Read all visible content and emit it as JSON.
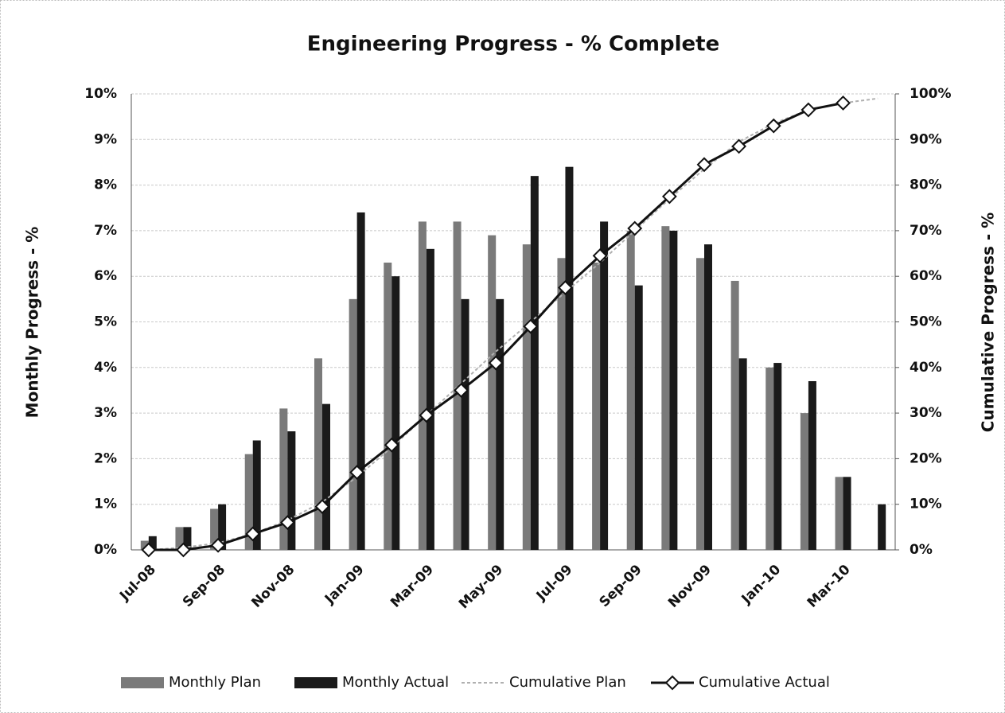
{
  "chart_data": {
    "type": "bar",
    "title": "Engineering Progress - % Complete",
    "y_label": "Monthly Progress - %",
    "y2_label": "Cumulative Progress - %",
    "categories": [
      "Jul-08",
      null,
      "Sep-08",
      null,
      "Nov-08",
      null,
      "Jan-09",
      null,
      "Mar-09",
      null,
      "May-09",
      null,
      "Jul-09",
      null,
      "Sep-09",
      null,
      "Nov-09",
      null,
      "Jan-10",
      null,
      "Mar-10",
      null
    ],
    "series": [
      {
        "name": "Monthly Plan",
        "type": "bar",
        "color": "#7a7a7a",
        "values": [
          0.2,
          0.5,
          0.9,
          2.1,
          3.1,
          4.2,
          5.5,
          6.3,
          7.2,
          7.2,
          6.9,
          6.7,
          6.4,
          6.3,
          7.0,
          7.1,
          6.4,
          5.9,
          4.0,
          3.0,
          1.6,
          null
        ]
      },
      {
        "name": "Monthly Actual",
        "type": "bar",
        "color": "#1a1a1a",
        "values": [
          0.3,
          0.5,
          1.0,
          2.4,
          2.6,
          3.2,
          7.4,
          6.0,
          6.6,
          5.5,
          5.5,
          8.2,
          8.4,
          7.2,
          5.8,
          7.0,
          6.7,
          4.2,
          4.1,
          3.7,
          1.6,
          1.0
        ]
      },
      {
        "name": "Cumulative Plan",
        "type": "line",
        "axis": "y2",
        "color": "#b0b0b0",
        "values": [
          0,
          0.5,
          1.5,
          3.5,
          6.5,
          10.5,
          16,
          22.5,
          29.5,
          36.5,
          43.5,
          50,
          56.5,
          63,
          70,
          77,
          83.5,
          89.5,
          93.5,
          96.5,
          98,
          99
        ]
      },
      {
        "name": "Cumulative Actual",
        "type": "line",
        "axis": "y2",
        "color": "#111111",
        "values": [
          0,
          0,
          1,
          3.5,
          6,
          9.5,
          17,
          23,
          29.5,
          35,
          41,
          49,
          57.5,
          64.5,
          70.5,
          77.5,
          84.5,
          88.5,
          93,
          96.5,
          98,
          null
        ]
      }
    ],
    "ylim": [
      0,
      10
    ],
    "yticks": [
      {
        "value": 0,
        "label": "0%"
      },
      {
        "value": 1,
        "label": "1%"
      },
      {
        "value": 2,
        "label": "2%"
      },
      {
        "value": 3,
        "label": "3%"
      },
      {
        "value": 4,
        "label": "4%"
      },
      {
        "value": 5,
        "label": "5%"
      },
      {
        "value": 6,
        "label": "6%"
      },
      {
        "value": 7,
        "label": "7%"
      },
      {
        "value": 8,
        "label": "8%"
      },
      {
        "value": 9,
        "label": "9%"
      },
      {
        "value": 10,
        "label": "10%"
      }
    ],
    "y2lim": [
      0,
      100
    ],
    "y2ticks": [
      {
        "value": 0,
        "label": "0%"
      },
      {
        "value": 10,
        "label": "10%"
      },
      {
        "value": 20,
        "label": "20%"
      },
      {
        "value": 30,
        "label": "30%"
      },
      {
        "value": 40,
        "label": "40%"
      },
      {
        "value": 50,
        "label": "50%"
      },
      {
        "value": 60,
        "label": "60%"
      },
      {
        "value": 70,
        "label": "70%"
      },
      {
        "value": 80,
        "label": "80%"
      },
      {
        "value": 90,
        "label": "90%"
      },
      {
        "value": 100,
        "label": "100%"
      }
    ],
    "grid": true,
    "legend": "bottom"
  }
}
